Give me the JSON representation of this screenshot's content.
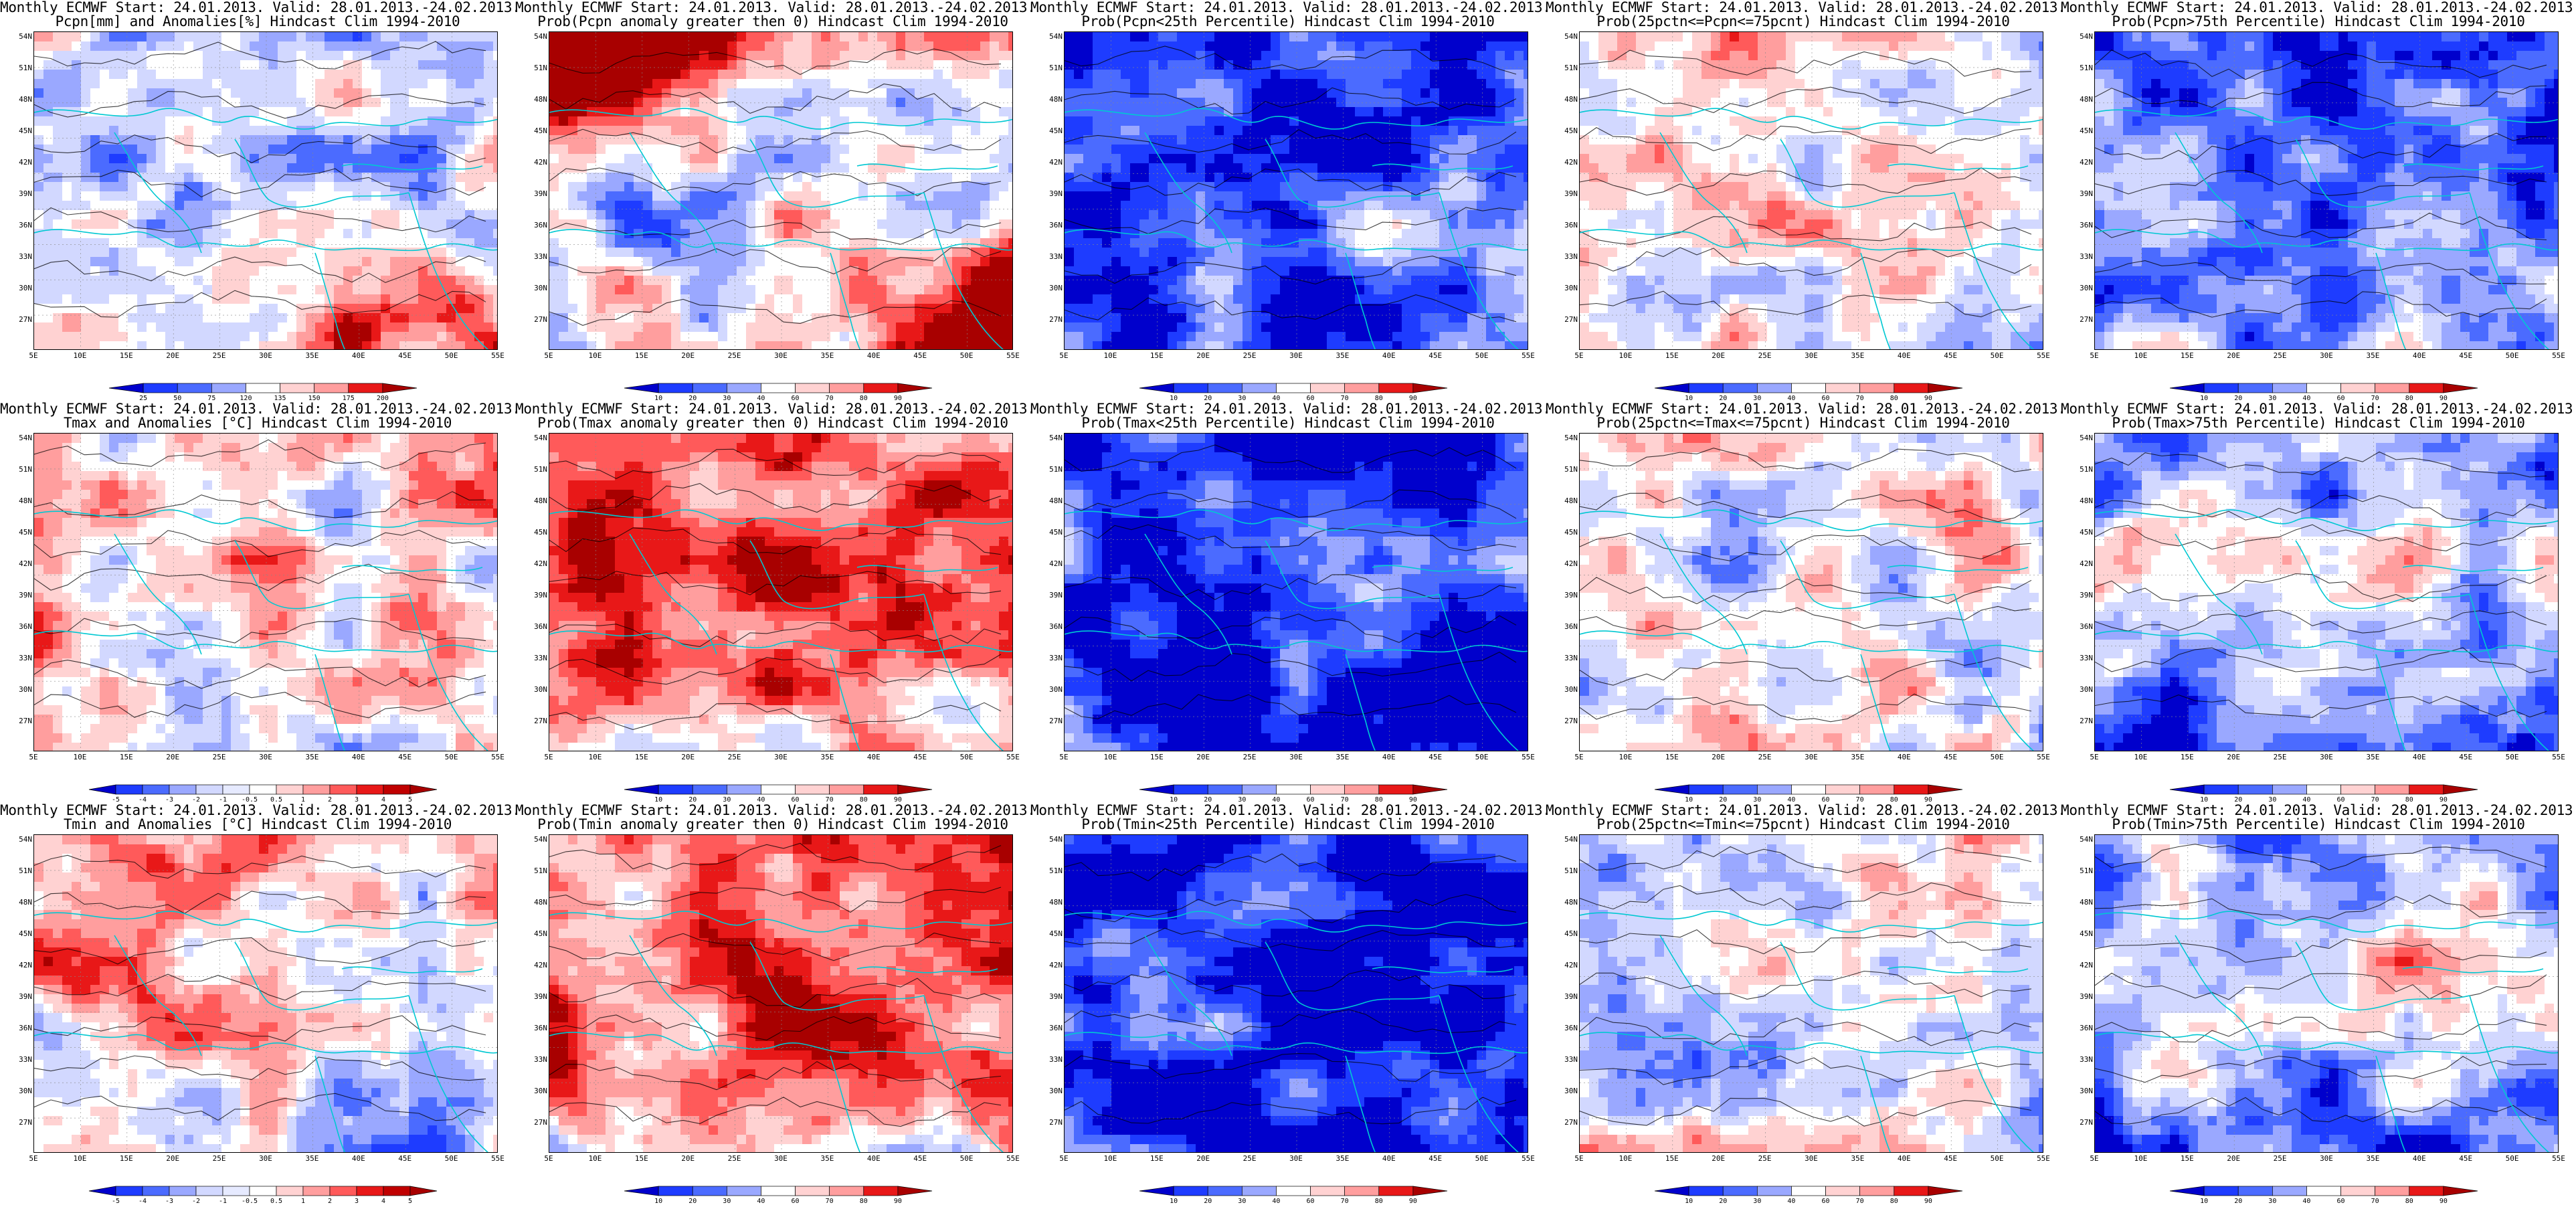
{
  "colors": {
    "blue_dark": "#0000cc",
    "blue": "#1e3cff",
    "blue_mid": "#4b6bff",
    "blue_light": "#9aa8ff",
    "blue_pale": "#d2d8ff",
    "white": "#ffffff",
    "red_pale": "#ffd2d2",
    "red_light": "#ff9e9e",
    "red_mid": "#ff5a5a",
    "red": "#e81818",
    "red_dark": "#a80000",
    "coast": "#00c8d2",
    "contour": "#000000"
  },
  "lat_labels": [
    "54N",
    "51N",
    "48N",
    "45N",
    "42N",
    "39N",
    "36N",
    "33N",
    "30N",
    "27N"
  ],
  "lon_labels": [
    "5E",
    "10E",
    "15E",
    "20E",
    "25E",
    "30E",
    "35E",
    "40E",
    "45E",
    "50E",
    "55E"
  ],
  "colorbars": {
    "pcpn": [
      "25",
      "50",
      "75",
      "120",
      "135",
      "150",
      "175",
      "200"
    ],
    "temp": [
      "-5",
      "-4",
      "-3",
      "-2",
      "-1",
      "-0.5",
      "0.5",
      "1",
      "2",
      "3",
      "4",
      "5"
    ],
    "prob": [
      "10",
      "20",
      "30",
      "40",
      "60",
      "70",
      "80",
      "90"
    ]
  },
  "panels": [
    {
      "line1": "Monthly ECMWF Start: 24.01.2013. Valid: 28.01.2013.-24.02.2013.",
      "line2": "Pcpn[mm] and Anomalies[%] Hindcast Clim 1994-2010",
      "bar": "pcpn",
      "mode": "anom_p"
    },
    {
      "line1": "Monthly ECMWF Start: 24.01.2013. Valid: 28.01.2013.-24.02.2013.",
      "line2": "Prob(Pcpn anomaly greater then 0) Hindcast Clim 1994-2010",
      "bar": "prob",
      "mode": "prob_gt0_p"
    },
    {
      "line1": "Monthly ECMWF Start: 24.01.2013. Valid: 28.01.2013.-24.02.2013.",
      "line2": "Prob(Pcpn<25th Percentile) Hindcast Clim 1994-2010",
      "bar": "prob",
      "mode": "prob_lo_p"
    },
    {
      "line1": "Monthly ECMWF Start: 24.01.2013. Valid: 28.01.2013.-24.02.2013.",
      "line2": "Prob(25pctn<=Pcpn<=75pcnt) Hindcast Clim 1994-2010",
      "bar": "prob",
      "mode": "prob_mid"
    },
    {
      "line1": "Monthly ECMWF Start: 24.01.2013. Valid: 28.01.2013.-24.02.2013.",
      "line2": "Prob(Pcpn>75th Percentile) Hindcast Clim 1994-2010",
      "bar": "prob",
      "mode": "prob_hi_p"
    },
    {
      "line1": "Monthly ECMWF Start: 24.01.2013. Valid: 28.01.2013.-24.02.2013.",
      "line2": "Tmax and Anomalies [°C] Hindcast Clim 1994-2010",
      "bar": "temp",
      "mode": "anom_t"
    },
    {
      "line1": "Monthly ECMWF Start: 24.01.2013. Valid: 28.01.2013.-24.02.2013.",
      "line2": "Prob(Tmax anomaly greater then 0) Hindcast Clim 1994-2010",
      "bar": "prob",
      "mode": "prob_gt0_t"
    },
    {
      "line1": "Monthly ECMWF Start: 24.01.2013. Valid: 28.01.2013.-24.02.2013.",
      "line2": "Prob(Tmax<25th Percentile) Hindcast Clim 1994-2010",
      "bar": "prob",
      "mode": "prob_lo_t"
    },
    {
      "line1": "Monthly ECMWF Start: 24.01.2013. Valid: 28.01.2013.-24.02.2013.",
      "line2": "Prob(25pctn<=Tmax<=75pcnt) Hindcast Clim 1994-2010",
      "bar": "prob",
      "mode": "prob_mid"
    },
    {
      "line1": "Monthly ECMWF Start: 24.01.2013. Valid: 28.01.2013.-24.02.2013.",
      "line2": "Prob(Tmax>75th Percentile) Hindcast Clim 1994-2010",
      "bar": "prob",
      "mode": "prob_hi_t"
    },
    {
      "line1": "Monthly ECMWF Start: 24.01.2013. Valid: 28.01.2013.-24.02.2013.",
      "line2": "Tmin and Anomalies [°C] Hindcast Clim 1994-2010",
      "bar": "temp",
      "mode": "anom_t"
    },
    {
      "line1": "Monthly ECMWF Start: 24.01.2013. Valid: 28.01.2013.-24.02.2013.",
      "line2": "Prob(Tmin anomaly greater then 0) Hindcast Clim 1994-2010",
      "bar": "prob",
      "mode": "prob_gt0_t"
    },
    {
      "line1": "Monthly ECMWF Start: 24.01.2013. Valid: 28.01.2013.-24.02.2013.",
      "line2": "Prob(Tmin<25th Percentile) Hindcast Clim 1994-2010",
      "bar": "prob",
      "mode": "prob_lo_t"
    },
    {
      "line1": "Monthly ECMWF Start: 24.01.2013. Valid: 28.01.2013.-24.02.2013.",
      "line2": "Prob(25pctn<=Tmin<=75pcnt) Hindcast Clim 1994-2010",
      "bar": "prob",
      "mode": "prob_mid"
    },
    {
      "line1": "Monthly ECMWF Start: 24.01.2013. Valid: 28.01.2013.-24.02.2013.",
      "line2": "Prob(Tmin>75th Percentile) Hindcast Clim 1994-2010",
      "bar": "prob",
      "mode": "prob_hi_t"
    }
  ]
}
